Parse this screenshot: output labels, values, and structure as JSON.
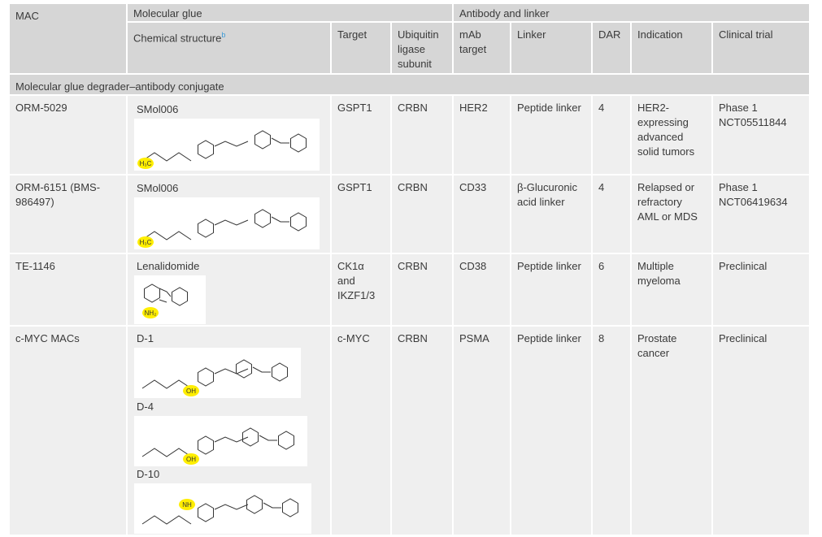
{
  "table": {
    "header": {
      "mac": "MAC",
      "molecular_glue": "Molecular glue",
      "antibody_and_linker": "Antibody and linker",
      "chemical_structure": "Chemical structure",
      "chemical_structure_note": "b",
      "target": "Target",
      "ubiquitin_ligase_subunit": "Ubiquitin ligase subunit",
      "mab_target": "mAb target",
      "linker": "Linker",
      "dar": "DAR",
      "indication": "Indication",
      "clinical_trial": "Clinical trial"
    },
    "section": "Molecular glue degrader–antibody conjugate",
    "rows": [
      {
        "mac": "ORM-5029",
        "glue": [
          {
            "name": "SMol006",
            "highlight": "H₃C"
          }
        ],
        "target": "GSPT1",
        "ligase": "CRBN",
        "mab_target": "HER2",
        "linker": "Peptide linker",
        "dar": 4,
        "indication": "HER2-expressing advanced solid tumors",
        "clinical_trial": "Phase 1 NCT05511844"
      },
      {
        "mac": "ORM-6151 (BMS-986497)",
        "glue": [
          {
            "name": "SMol006",
            "highlight": "H₃C"
          }
        ],
        "target": "GSPT1",
        "ligase": "CRBN",
        "mab_target": "CD33",
        "linker": "β-Glucuronic acid linker",
        "dar": 4,
        "indication": "Relapsed or refractory AML or MDS",
        "clinical_trial": "Phase 1 NCT06419634"
      },
      {
        "mac": "TE-1146",
        "glue": [
          {
            "name": "Lenalidomide",
            "highlight": "NH₂"
          }
        ],
        "target": "CK1α and IKZF1/3",
        "ligase": "CRBN",
        "mab_target": "CD38",
        "linker": "Peptide linker",
        "dar": 6,
        "indication": "Multiple myeloma",
        "clinical_trial": "Preclinical"
      },
      {
        "mac": "c-MYC MACs",
        "glue": [
          {
            "name": "D-1",
            "highlight": "OH"
          },
          {
            "name": "D-4",
            "highlight": "OH"
          },
          {
            "name": "D-10",
            "highlight": "NH"
          }
        ],
        "target": "c-MYC",
        "ligase": "CRBN",
        "mab_target": "PSMA",
        "linker": "Peptide linker",
        "dar": 8,
        "indication": "Prostate cancer",
        "clinical_trial": "Preclinical"
      }
    ]
  }
}
